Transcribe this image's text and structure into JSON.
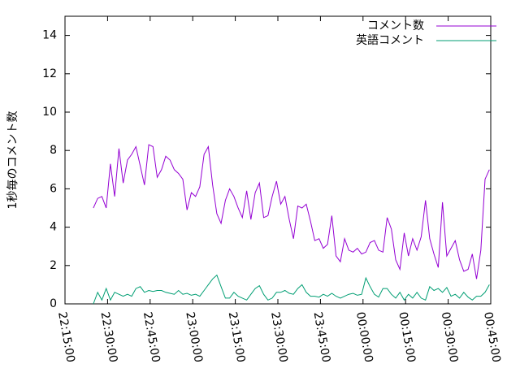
{
  "chart_data": {
    "type": "line",
    "y_label": "1秒毎のコメント数",
    "x": [
      80700,
      80790,
      80880,
      80970,
      81060,
      81150,
      81240,
      81330,
      81420,
      81510,
      81600,
      81690,
      81780,
      81870,
      81960,
      82050,
      82140,
      82230,
      82320,
      82410,
      82500,
      82590,
      82680,
      82770,
      82860,
      82950,
      83040,
      83130,
      83220,
      83310,
      83400,
      83490,
      83580,
      83670,
      83760,
      83850,
      83940,
      84030,
      84120,
      84210,
      84300,
      84390,
      84480,
      84570,
      84660,
      84750,
      84840,
      84930,
      85020,
      85110,
      85200,
      85290,
      85380,
      85470,
      85560,
      85650,
      85740,
      85830,
      85920,
      86010,
      86100,
      86190,
      86280,
      86370,
      86460,
      86550,
      86640,
      86730,
      86820,
      86910,
      87000,
      87090,
      87180,
      87270,
      87360,
      87450,
      87540,
      87630,
      87720,
      87810,
      87900,
      87990,
      88080,
      88170,
      88260,
      88350,
      88440,
      88530,
      88620,
      88710,
      88800,
      88890,
      88980,
      89070
    ],
    "series": [
      {
        "name": "コメント数",
        "color": "#9400d3",
        "values": [
          5.0,
          5.5,
          5.6,
          5.0,
          7.3,
          5.6,
          8.1,
          6.3,
          7.5,
          7.8,
          8.2,
          7.2,
          6.2,
          8.3,
          8.2,
          6.6,
          7.0,
          7.7,
          7.5,
          7.0,
          6.8,
          6.5,
          4.9,
          5.8,
          5.6,
          6.1,
          7.8,
          8.2,
          6.2,
          4.7,
          4.2,
          5.4,
          6.0,
          5.6,
          5.0,
          4.5,
          5.9,
          4.4,
          5.8,
          6.3,
          4.5,
          4.6,
          5.6,
          6.4,
          5.2,
          5.6,
          4.4,
          3.4,
          5.1,
          5.0,
          5.2,
          4.3,
          3.3,
          3.4,
          2.9,
          3.1,
          4.6,
          2.5,
          2.2,
          3.4,
          2.8,
          2.7,
          2.9,
          2.6,
          2.7,
          3.2,
          3.3,
          2.8,
          2.7,
          4.5,
          3.9,
          2.3,
          1.8,
          3.7,
          2.5,
          3.4,
          2.8,
          3.5,
          5.4,
          3.4,
          2.6,
          1.9,
          5.3,
          2.5,
          2.9,
          3.3,
          2.3,
          1.7,
          1.8,
          2.6,
          1.3,
          2.8,
          6.5,
          7.0
        ]
      },
      {
        "name": "英語コメント",
        "color": "#009e73",
        "values": [
          0.0,
          0.6,
          0.2,
          0.8,
          0.2,
          0.6,
          0.5,
          0.4,
          0.5,
          0.4,
          0.8,
          0.9,
          0.6,
          0.7,
          0.65,
          0.7,
          0.7,
          0.6,
          0.55,
          0.5,
          0.7,
          0.5,
          0.55,
          0.45,
          0.5,
          0.4,
          0.7,
          1.0,
          1.3,
          1.5,
          0.9,
          0.3,
          0.3,
          0.6,
          0.4,
          0.3,
          0.2,
          0.5,
          0.8,
          0.95,
          0.5,
          0.2,
          0.3,
          0.6,
          0.6,
          0.7,
          0.55,
          0.5,
          0.8,
          1.0,
          0.6,
          0.4,
          0.4,
          0.35,
          0.5,
          0.4,
          0.55,
          0.4,
          0.3,
          0.4,
          0.5,
          0.55,
          0.45,
          0.5,
          1.35,
          0.9,
          0.5,
          0.35,
          0.8,
          0.8,
          0.5,
          0.3,
          0.6,
          0.2,
          0.5,
          0.3,
          0.6,
          0.3,
          0.2,
          0.9,
          0.7,
          0.8,
          0.6,
          0.85,
          0.4,
          0.5,
          0.3,
          0.6,
          0.35,
          0.2,
          0.4,
          0.4,
          0.6,
          1.0
        ]
      }
    ],
    "xlim": [
      80100,
      89100
    ],
    "xticks": [
      {
        "value": 80100,
        "label": "22:15:00"
      },
      {
        "value": 81000,
        "label": "22:30:00"
      },
      {
        "value": 81900,
        "label": "22:45:00"
      },
      {
        "value": 82800,
        "label": "23:00:00"
      },
      {
        "value": 83700,
        "label": "23:15:00"
      },
      {
        "value": 84600,
        "label": "23:30:00"
      },
      {
        "value": 85500,
        "label": "23:45:00"
      },
      {
        "value": 86400,
        "label": "00:00:00"
      },
      {
        "value": 87300,
        "label": "00:15:00"
      },
      {
        "value": 88200,
        "label": "00:30:00"
      },
      {
        "value": 89100,
        "label": "00:45:00"
      }
    ],
    "ylim": [
      0,
      15
    ],
    "yticks": [
      0,
      2,
      4,
      6,
      8,
      10,
      12,
      14
    ],
    "legend": "top-right"
  }
}
